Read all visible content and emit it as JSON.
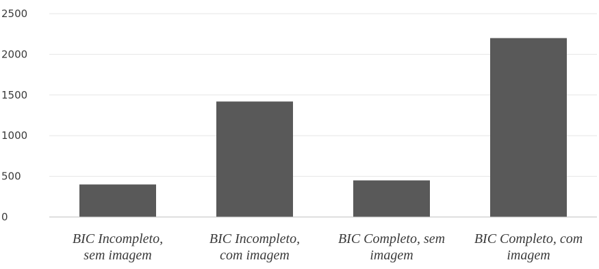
{
  "chart_data": {
    "type": "bar",
    "title": "",
    "xlabel": "",
    "ylabel": "",
    "categories": [
      [
        "BIC Incompleto,",
        "sem imagem"
      ],
      [
        "BIC Incompleto,",
        "com imagem"
      ],
      [
        "BIC Completo, sem",
        "imagem"
      ],
      [
        "BIC Completo, com",
        "imagem"
      ]
    ],
    "values": [
      400,
      1420,
      450,
      2200
    ],
    "ylim": [
      0,
      2500
    ],
    "yticks": [
      0,
      500,
      1000,
      1500,
      2000,
      2500
    ],
    "grid": true,
    "legend": "none",
    "colors": {
      "bar": "#595959",
      "grid": "#e6e6e6",
      "axis": "#bfbfbf"
    }
  }
}
